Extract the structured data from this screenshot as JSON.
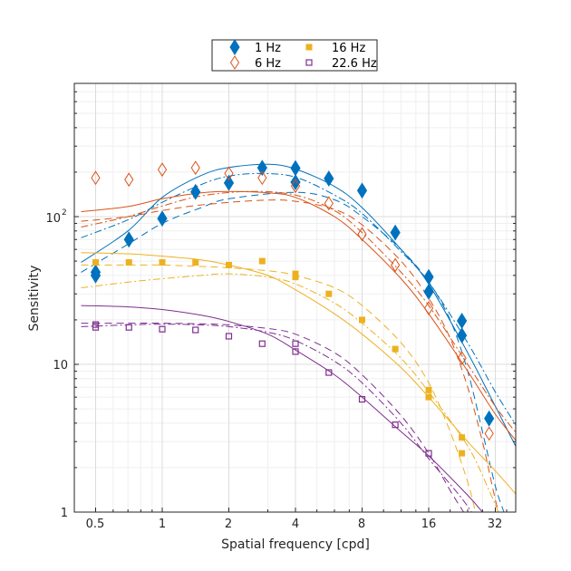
{
  "chart_data": {
    "type": "scatter",
    "title": "",
    "xlabel": "Spatial frequency [cpd]",
    "ylabel": "Sensitivity",
    "xscale": "log2",
    "yscale": "log10",
    "xlim": [
      0.43,
      40
    ],
    "ylim": [
      1,
      800
    ],
    "grid": "on (major and minor)",
    "legend_position": "top-center (outside)",
    "xticks": [
      0.5,
      1,
      2,
      4,
      8,
      16,
      32
    ],
    "xtick_labels": [
      "0.5",
      "1",
      "2",
      "4",
      "8",
      "16",
      "32"
    ],
    "yticks": [
      1,
      10,
      100
    ],
    "ytick_labels": [
      "1",
      "10",
      "10",
      "2"
    ],
    "ytick_label_texts": {
      "t1": "1",
      "t10": "10",
      "t100_base": "10",
      "t100_exp": "2"
    },
    "series": [
      {
        "name": "1 Hz",
        "marker": "filled-diamond",
        "color": "#0072BD",
        "points": [
          [
            0.5,
            42
          ],
          [
            0.5,
            40
          ],
          [
            0.707,
            70
          ],
          [
            1,
            97
          ],
          [
            1.414,
            147
          ],
          [
            2,
            169
          ],
          [
            2.83,
            214
          ],
          [
            4,
            213
          ],
          [
            4,
            171
          ],
          [
            5.66,
            181
          ],
          [
            8,
            150
          ],
          [
            11.3,
            78
          ],
          [
            16,
            39
          ],
          [
            16,
            31
          ],
          [
            22.6,
            19.7
          ],
          [
            22.6,
            15.7
          ],
          [
            30,
            4.3
          ]
        ],
        "fit_solid": [
          [
            0.43,
            49
          ],
          [
            0.7,
            80
          ],
          [
            1,
            135
          ],
          [
            1.5,
            190
          ],
          [
            2,
            215
          ],
          [
            3,
            226
          ],
          [
            4,
            210
          ],
          [
            6,
            160
          ],
          [
            8,
            115
          ],
          [
            12,
            60
          ],
          [
            16,
            35
          ],
          [
            24,
            12
          ],
          [
            32,
            5.2
          ],
          [
            40,
            2.7
          ]
        ],
        "fit_dashdot": [
          [
            0.43,
            72
          ],
          [
            0.7,
            95
          ],
          [
            1,
            125
          ],
          [
            1.5,
            165
          ],
          [
            2,
            188
          ],
          [
            2.8,
            196
          ],
          [
            4,
            185
          ],
          [
            6,
            140
          ],
          [
            8,
            105
          ],
          [
            12,
            58
          ],
          [
            16,
            36
          ],
          [
            24,
            14
          ],
          [
            32,
            6.5
          ],
          [
            40,
            3.8
          ]
        ],
        "fit_dashed": [
          [
            0.43,
            42
          ],
          [
            0.7,
            65
          ],
          [
            1,
            90
          ],
          [
            1.5,
            115
          ],
          [
            2,
            132
          ],
          [
            4,
            146
          ],
          [
            6,
            130
          ],
          [
            8,
            100
          ],
          [
            12,
            60
          ],
          [
            16,
            36
          ],
          [
            20,
            20
          ],
          [
            24,
            9
          ],
          [
            28,
            3.5
          ],
          [
            32,
            1.5
          ],
          [
            35,
            1
          ]
        ]
      },
      {
        "name": "6 Hz",
        "marker": "open-diamond",
        "color": "#D95319",
        "points": [
          [
            0.5,
            183
          ],
          [
            0.707,
            178
          ],
          [
            1,
            208
          ],
          [
            1.414,
            214
          ],
          [
            2,
            196
          ],
          [
            2.83,
            183
          ],
          [
            4,
            161
          ],
          [
            5.66,
            123
          ],
          [
            8,
            76
          ],
          [
            11.3,
            47
          ],
          [
            16,
            24
          ],
          [
            22.6,
            11
          ],
          [
            30,
            3.4
          ]
        ],
        "fit_solid": [
          [
            0.43,
            108
          ],
          [
            0.7,
            117
          ],
          [
            1,
            132
          ],
          [
            1.5,
            145
          ],
          [
            2,
            148
          ],
          [
            3,
            145
          ],
          [
            4,
            135
          ],
          [
            6,
            100
          ],
          [
            8,
            70
          ],
          [
            12,
            38
          ],
          [
            16,
            22
          ],
          [
            24,
            9
          ],
          [
            32,
            4.6
          ],
          [
            40,
            3.0
          ]
        ],
        "fit_dashdot": [
          [
            0.43,
            85
          ],
          [
            0.7,
            100
          ],
          [
            1,
            118
          ],
          [
            1.5,
            138
          ],
          [
            2.5,
            148
          ],
          [
            4,
            140
          ],
          [
            6,
            110
          ],
          [
            8,
            78
          ],
          [
            12,
            42
          ],
          [
            16,
            25
          ],
          [
            24,
            10
          ],
          [
            32,
            5.2
          ],
          [
            40,
            3.4
          ]
        ],
        "fit_dashed": [
          [
            0.43,
            93
          ],
          [
            0.7,
            100
          ],
          [
            1,
            110
          ],
          [
            1.5,
            120
          ],
          [
            2.8,
            129
          ],
          [
            4,
            127
          ],
          [
            6,
            112
          ],
          [
            8,
            88
          ],
          [
            12,
            50
          ],
          [
            16,
            28
          ],
          [
            20,
            15
          ],
          [
            24,
            7
          ],
          [
            28,
            3
          ],
          [
            31,
            1.5
          ],
          [
            33,
            1
          ]
        ]
      },
      {
        "name": "16 Hz",
        "marker": "filled-square",
        "color": "#EDB120",
        "points": [
          [
            0.5,
            49
          ],
          [
            0.707,
            49
          ],
          [
            1,
            49
          ],
          [
            1.414,
            49
          ],
          [
            2,
            47
          ],
          [
            2.83,
            50
          ],
          [
            4,
            41
          ],
          [
            4,
            39
          ],
          [
            5.66,
            30
          ],
          [
            8,
            20
          ],
          [
            11.3,
            12.7
          ],
          [
            16,
            6.7
          ],
          [
            16,
            6.0
          ],
          [
            22.6,
            3.2
          ],
          [
            22.6,
            2.5
          ]
        ],
        "fit_solid": [
          [
            0.43,
            57
          ],
          [
            0.7,
            56
          ],
          [
            1,
            54
          ],
          [
            1.5,
            51
          ],
          [
            2,
            47
          ],
          [
            3,
            40
          ],
          [
            4,
            32
          ],
          [
            6,
            22
          ],
          [
            8,
            16
          ],
          [
            12,
            9.5
          ],
          [
            16,
            6
          ],
          [
            24,
            3
          ],
          [
            32,
            1.9
          ],
          [
            40,
            1.3
          ]
        ],
        "fit_dashed": [
          [
            0.43,
            47
          ],
          [
            0.7,
            47
          ],
          [
            1,
            47
          ],
          [
            1.5,
            46
          ],
          [
            2,
            45
          ],
          [
            3,
            43
          ],
          [
            4,
            40
          ],
          [
            6,
            33
          ],
          [
            8,
            25
          ],
          [
            12,
            14
          ],
          [
            16,
            7.5
          ],
          [
            20,
            3.5
          ],
          [
            24,
            1.6
          ],
          [
            26,
            1
          ]
        ],
        "fit_dashdot": [
          [
            0.43,
            33
          ],
          [
            0.7,
            36
          ],
          [
            1,
            38
          ],
          [
            1.5,
            40
          ],
          [
            2,
            41
          ],
          [
            3,
            39
          ],
          [
            4,
            35
          ],
          [
            6,
            26
          ],
          [
            8,
            19
          ],
          [
            12,
            11
          ],
          [
            16,
            6.5
          ],
          [
            24,
            2.8
          ],
          [
            30,
            1.4
          ],
          [
            33,
            1
          ]
        ]
      },
      {
        "name": "22.6 Hz",
        "marker": "open-square",
        "color": "#7E2F8E",
        "points": [
          [
            0.5,
            18.6
          ],
          [
            0.5,
            17.8
          ],
          [
            0.707,
            17.8
          ],
          [
            1,
            17.3
          ],
          [
            1.414,
            17.1
          ],
          [
            2,
            15.5
          ],
          [
            2.83,
            13.8
          ],
          [
            4,
            13.8
          ],
          [
            4,
            12.2
          ],
          [
            5.66,
            8.8
          ],
          [
            8,
            5.8
          ],
          [
            11.3,
            3.9
          ],
          [
            16,
            2.5
          ]
        ],
        "fit_solid": [
          [
            0.43,
            25
          ],
          [
            0.7,
            24.5
          ],
          [
            1,
            23.5
          ],
          [
            1.5,
            21.5
          ],
          [
            2,
            19.5
          ],
          [
            3,
            16
          ],
          [
            4,
            12.5
          ],
          [
            6,
            8.5
          ],
          [
            8,
            6
          ],
          [
            12,
            3.5
          ],
          [
            16,
            2.4
          ],
          [
            24,
            1.3
          ],
          [
            28,
            1
          ]
        ],
        "fit_dashed": [
          [
            0.43,
            19
          ],
          [
            0.7,
            19
          ],
          [
            1,
            19
          ],
          [
            1.5,
            18.8
          ],
          [
            2,
            18.5
          ],
          [
            3,
            17.5
          ],
          [
            4,
            16
          ],
          [
            6,
            12
          ],
          [
            8,
            8.5
          ],
          [
            12,
            4.5
          ],
          [
            16,
            2.5
          ],
          [
            20,
            1.4
          ],
          [
            23,
            1
          ]
        ],
        "fit_dashdot": [
          [
            0.43,
            18
          ],
          [
            0.7,
            18.5
          ],
          [
            1,
            18.7
          ],
          [
            1.5,
            18.5
          ],
          [
            2,
            18
          ],
          [
            3,
            16.5
          ],
          [
            4,
            14.5
          ],
          [
            6,
            10.5
          ],
          [
            8,
            7.5
          ],
          [
            12,
            4
          ],
          [
            16,
            2.3
          ],
          [
            22,
            1.3
          ],
          [
            25,
            1
          ]
        ]
      }
    ]
  }
}
